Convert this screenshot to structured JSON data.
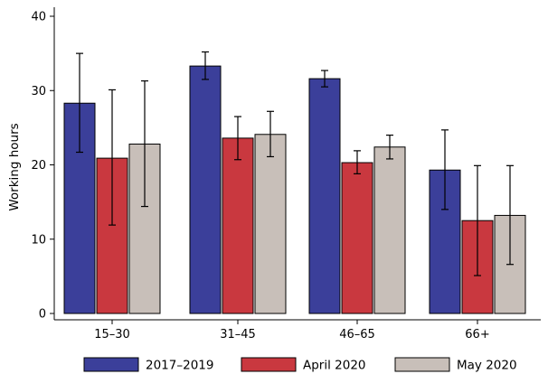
{
  "chart_data": {
    "type": "bar",
    "ylabel": "Working hours",
    "xlabel": "",
    "ylim": [
      0,
      40
    ],
    "yticks": [
      0,
      10,
      20,
      30,
      40
    ],
    "categories": [
      "15–30",
      "31–45",
      "46–65",
      "66+"
    ],
    "series": [
      {
        "name": "2017–2019",
        "color": "#3b3f9a",
        "values": [
          28.3,
          33.3,
          31.6,
          19.3
        ],
        "err_low": [
          21.7,
          31.5,
          30.5,
          14.0
        ],
        "err_high": [
          35.0,
          35.2,
          32.7,
          24.7
        ]
      },
      {
        "name": "April 2020",
        "color": "#c9383f",
        "values": [
          20.9,
          23.6,
          20.3,
          12.5
        ],
        "err_low": [
          11.9,
          20.7,
          18.8,
          5.1
        ],
        "err_high": [
          30.1,
          26.5,
          21.9,
          19.9
        ]
      },
      {
        "name": "May 2020",
        "color": "#c8bfb9",
        "values": [
          22.8,
          24.1,
          22.4,
          13.2
        ],
        "err_low": [
          14.4,
          21.1,
          20.8,
          6.6
        ],
        "err_high": [
          31.3,
          27.2,
          24.0,
          19.9
        ]
      }
    ],
    "grid": false,
    "legend": "bottom"
  }
}
